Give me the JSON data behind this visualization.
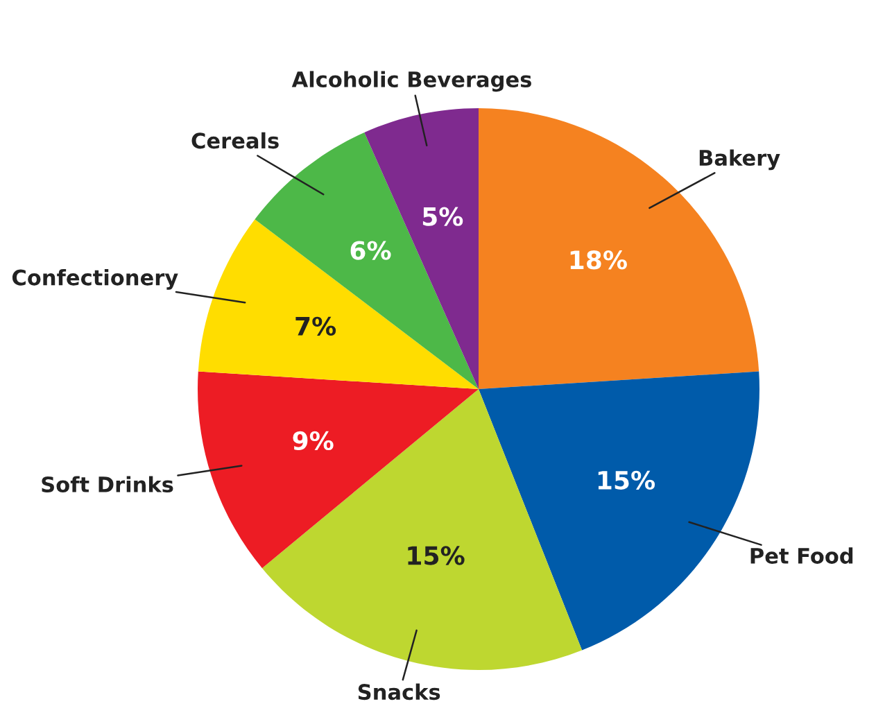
{
  "chart_data": {
    "type": "pie",
    "categories": [
      "Bakery",
      "Pet Food",
      "Snacks",
      "Soft Drinks",
      "Confectionery",
      "Cereals",
      "Alcoholic Beverages"
    ],
    "values": [
      18,
      15,
      15,
      9,
      7,
      6,
      5
    ],
    "value_labels": [
      "18%",
      "15%",
      "15%",
      "9%",
      "7%",
      "6%",
      "5%"
    ],
    "colors": [
      "#f58220",
      "#005baa",
      "#bed730",
      "#ed1c24",
      "#ffdd00",
      "#4db848",
      "#7f2a8f"
    ],
    "legend": false
  }
}
